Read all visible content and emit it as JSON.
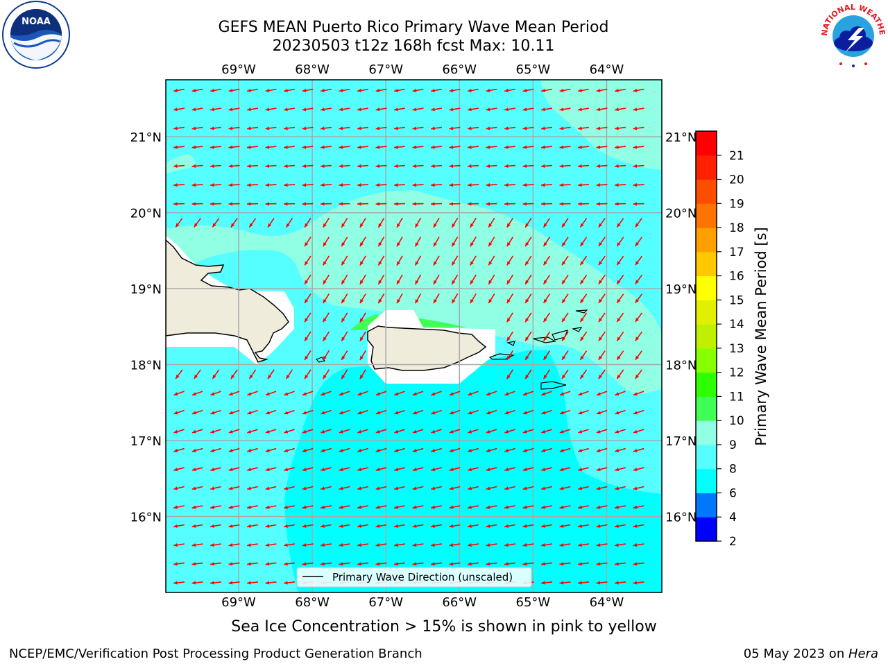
{
  "header": {
    "title_line1": "GEFS MEAN Puerto Rico Primary Wave Mean Period",
    "title_line2": "20230503 t12z 168h fcst   Max: 10.11"
  },
  "logos": {
    "left": "noaa-logo",
    "right": "nws-logo",
    "left_text": "NOAA",
    "right_text": "NATIONAL WEATHER SERVICE"
  },
  "map": {
    "lon_ticks": [
      "69°W",
      "68°W",
      "67°W",
      "66°W",
      "65°W",
      "64°W"
    ],
    "lon_values": [
      -69,
      -68,
      -67,
      -66,
      -65,
      -64
    ],
    "lat_ticks": [
      "21°N",
      "20°N",
      "19°N",
      "18°N",
      "17°N",
      "16°N"
    ],
    "lat_values": [
      21,
      20,
      19,
      18,
      17,
      16
    ],
    "lon_range": [
      -69.99,
      -63.25
    ],
    "lat_range": [
      15.0,
      21.75
    ],
    "legend_label": "Primary Wave Direction (unscaled)",
    "arrow_color": "#ff0000",
    "land_color": "#efecdc",
    "grid": true
  },
  "colorbar": {
    "label": "Primary Wave Mean Period [s]",
    "ticks": [
      "2",
      "4",
      "6",
      "8",
      "9",
      "10",
      "11",
      "12",
      "13",
      "14",
      "15",
      "16",
      "17",
      "18",
      "19",
      "20",
      "21"
    ],
    "colors": [
      "#0000ff",
      "#0077ff",
      "#00ffff",
      "#55ffff",
      "#90ffe3",
      "#40ff55",
      "#2dff00",
      "#87ff00",
      "#bef000",
      "#e1f000",
      "#ffff00",
      "#ffc800",
      "#ffa000",
      "#ff7300",
      "#ff4d00",
      "#ff2000",
      "#ff0000"
    ]
  },
  "notes": {
    "sea_ice": "Sea Ice Concentration > 15% is shown in pink to yellow"
  },
  "footer": {
    "left": "NCEP/EMC/Verification Post Processing Product Generation Branch",
    "date": "05 May 2023 on ",
    "machine": "Hera"
  }
}
